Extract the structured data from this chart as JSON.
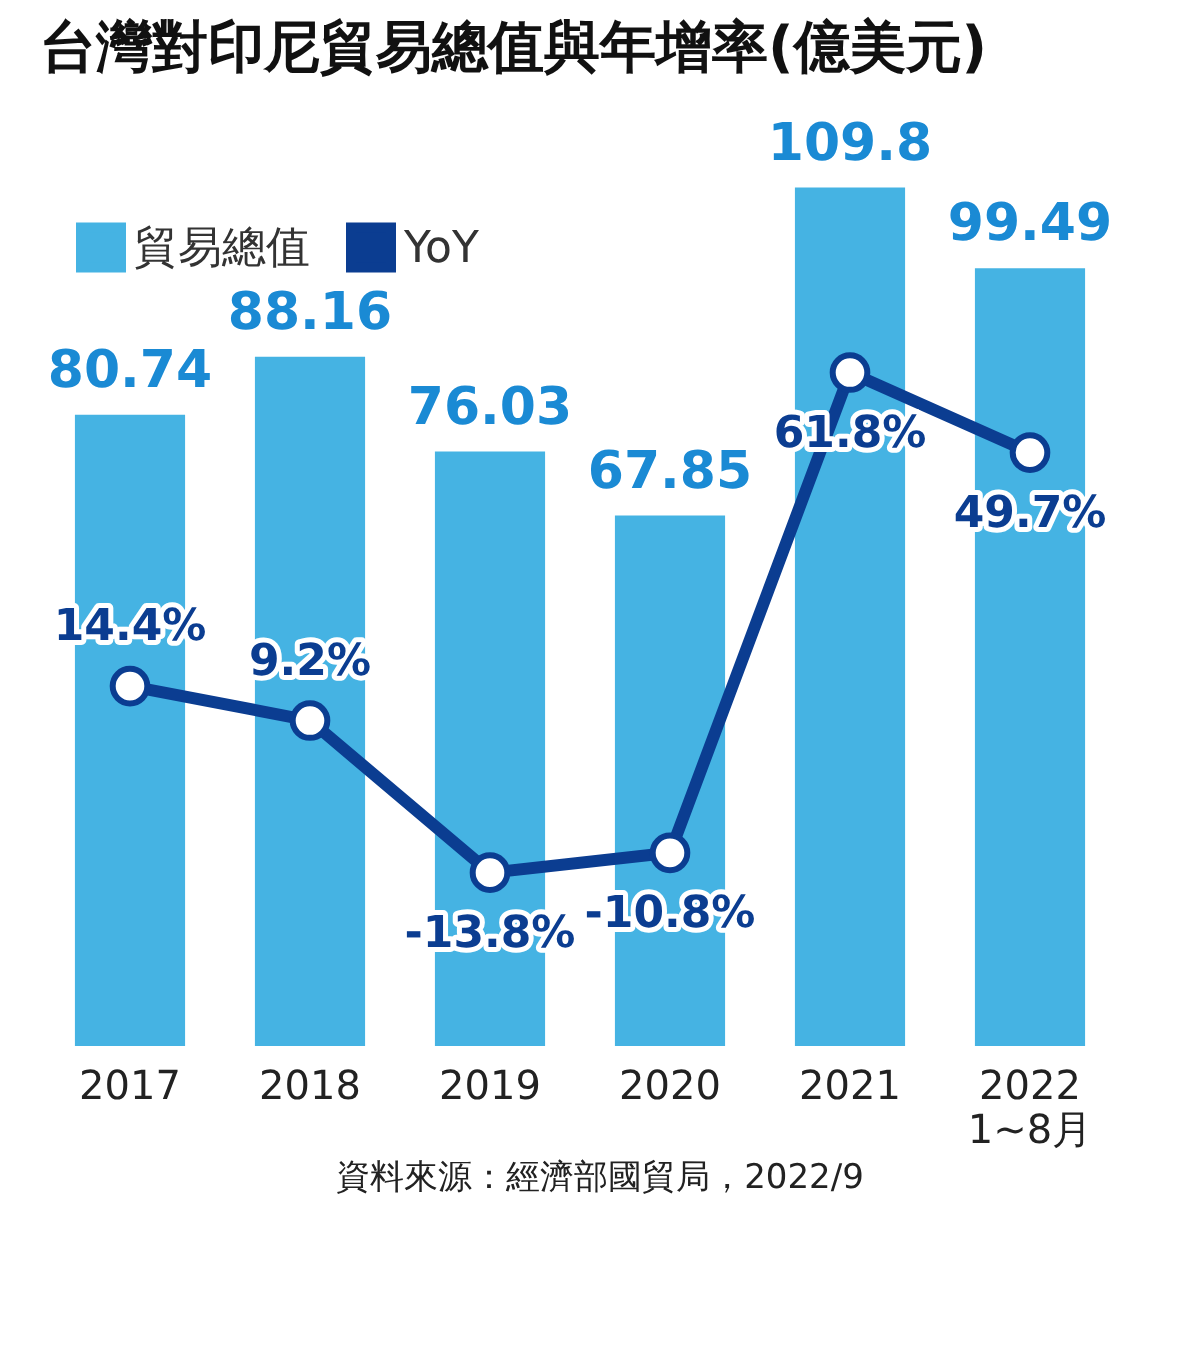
{
  "chart_data": {
    "type": "bar",
    "title": "台灣對印尼貿易總值與年增率(億美元)",
    "categories": [
      "2017",
      "2018",
      "2019",
      "2020",
      "2021",
      "2022\n1~8月"
    ],
    "series": [
      {
        "name": "貿易總值",
        "color": "#45b3e3",
        "values": [
          80.74,
          88.16,
          76.03,
          67.85,
          109.8,
          99.49
        ],
        "value_labels": [
          "80.74",
          "88.16",
          "76.03",
          "67.85",
          "109.8",
          "99.49"
        ]
      },
      {
        "name": "YoY",
        "type": "line",
        "axis": "y2",
        "color": "#0b3d91",
        "values": [
          14.4,
          9.2,
          -13.8,
          -10.8,
          61.8,
          49.7
        ],
        "value_labels": [
          "14.4%",
          "9.2%",
          "-13.8%",
          "-10.8%",
          "61.8%",
          "49.7%"
        ]
      }
    ],
    "legend": "top left",
    "marker": "circle",
    "grid": false,
    "annotations": [
      "資料來源：經濟部國貿局，2022/9"
    ]
  }
}
